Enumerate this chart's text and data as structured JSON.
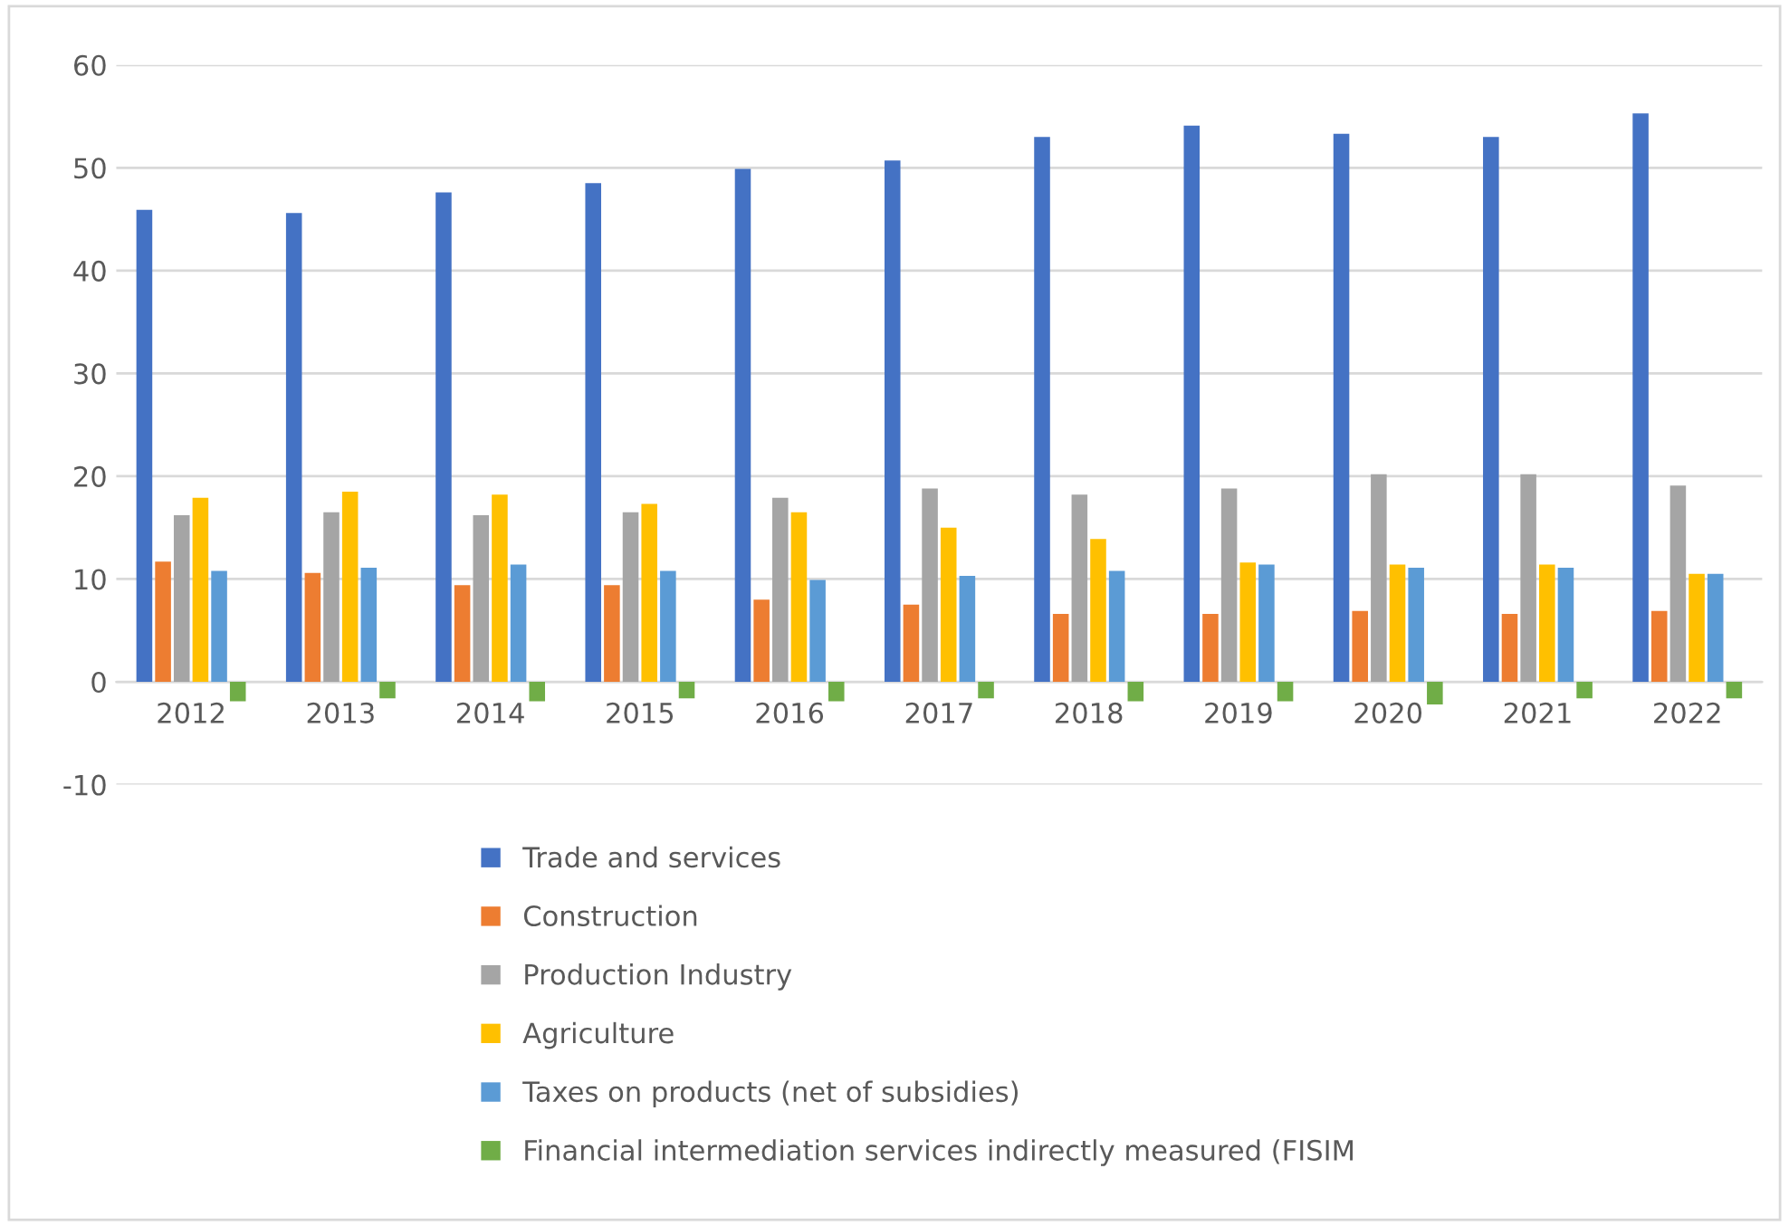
{
  "chart_data": {
    "type": "bar",
    "categories": [
      "2012",
      "2013",
      "2014",
      "2015",
      "2016",
      "2017",
      "2018",
      "2019",
      "2020",
      "2021",
      "2022"
    ],
    "series": [
      {
        "name": "Trade and services",
        "color": "#4472c4",
        "values": [
          45.9,
          45.6,
          47.6,
          48.5,
          49.9,
          50.7,
          53.0,
          54.1,
          53.3,
          53.0,
          55.3
        ]
      },
      {
        "name": "Construction",
        "color": "#ed7d31",
        "values": [
          11.7,
          10.6,
          9.4,
          9.4,
          8.0,
          7.5,
          6.6,
          6.6,
          6.9,
          6.6,
          6.9
        ]
      },
      {
        "name": "Production Industry",
        "color": "#a5a5a5",
        "values": [
          16.2,
          16.5,
          16.2,
          16.5,
          17.9,
          18.8,
          18.2,
          18.8,
          20.2,
          20.2,
          19.1
        ]
      },
      {
        "name": "Agriculture",
        "color": "#ffc000",
        "values": [
          17.9,
          18.5,
          18.2,
          17.3,
          16.5,
          15.0,
          13.9,
          11.6,
          11.4,
          11.4,
          10.5
        ]
      },
      {
        "name": "Taxes on products (net of subsidies)",
        "color": "#5b9bd5",
        "values": [
          10.8,
          11.1,
          11.4,
          10.8,
          9.9,
          10.3,
          10.8,
          11.4,
          11.1,
          11.1,
          10.5
        ]
      },
      {
        "name": "Financial intermediation services indirectly measured (FISIM",
        "color": "#70ad47",
        "values": [
          -1.9,
          -1.6,
          -1.9,
          -1.6,
          -1.9,
          -1.6,
          -1.9,
          -1.9,
          -2.2,
          -1.6,
          -1.6
        ]
      }
    ],
    "ylim": [
      -10,
      60
    ],
    "yticks": [
      -10,
      0,
      10,
      20,
      30,
      40,
      50,
      60
    ],
    "grid": "y",
    "legend": "bottom"
  }
}
